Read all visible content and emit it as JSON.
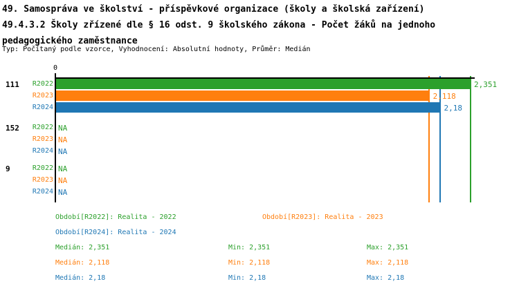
{
  "header": {
    "title_line1": "49. Samospráva ve školství - příspěvkové organizace (školy a školská zařízení)",
    "title_line2": "49.4.3.2 Školy zřízené dle § 16 odst. 9 školského zákona - Počet žáků na jednoho",
    "title_line3": "pedagogického zaměstnance",
    "meta": "Typ: Počítaný podle vzorce, Vyhodnocení: Absolutní hodnoty, Průměr: Medián"
  },
  "colors": {
    "r2022": "#2ca02c",
    "r2023": "#ff7f0e",
    "r2024": "#1f77b4",
    "axis": "#000000"
  },
  "chart_data": {
    "type": "bar",
    "orientation": "horizontal",
    "title": "49.4.3.2 Školy zřízené dle § 16 odst. 9 školského zákona - Počet žáků na jednoho pedagogického zaměstnance",
    "xlabel": "",
    "ylabel": "",
    "xlim": [
      0,
      2.38
    ],
    "axis_zero_label": "0",
    "grid": false,
    "legend_position": "bottom",
    "series_names": [
      "R2022",
      "R2023",
      "R2024"
    ],
    "categories": [
      "111",
      "152",
      "9"
    ],
    "groups": [
      {
        "label": "111",
        "rows": [
          {
            "series": "R2022",
            "value": 2.351,
            "value_label": "2,351"
          },
          {
            "series": "R2023",
            "value": 2.118,
            "value_label": "2,118"
          },
          {
            "series": "R2024",
            "value": 2.18,
            "value_label": "2,18"
          }
        ]
      },
      {
        "label": "152",
        "rows": [
          {
            "series": "R2022",
            "value": null,
            "value_label": "NA"
          },
          {
            "series": "R2023",
            "value": null,
            "value_label": "NA"
          },
          {
            "series": "R2024",
            "value": null,
            "value_label": "NA"
          }
        ]
      },
      {
        "label": "9",
        "rows": [
          {
            "series": "R2022",
            "value": null,
            "value_label": "NA"
          },
          {
            "series": "R2023",
            "value": null,
            "value_label": "NA"
          },
          {
            "series": "R2024",
            "value": null,
            "value_label": "NA"
          }
        ]
      }
    ],
    "median_marker_lines": [
      {
        "series": "R2022",
        "value": 2.351
      },
      {
        "series": "R2023",
        "value": 2.118
      },
      {
        "series": "R2024",
        "value": 2.18
      }
    ]
  },
  "footer": {
    "legend": [
      {
        "series": "R2022",
        "text": "Období[R2022]: Realita - 2022"
      },
      {
        "series": "R2023",
        "text": "Období[R2023]: Realita - 2023"
      },
      {
        "series": "R2024",
        "text": "Období[R2024]: Realita - 2024"
      }
    ],
    "stats": [
      {
        "series": "R2022",
        "median": "Medián: 2,351",
        "min": "Min: 2,351",
        "max": "Max: 2,351"
      },
      {
        "series": "R2023",
        "median": "Medián: 2,118",
        "min": "Min: 2,118",
        "max": "Max: 2,118"
      },
      {
        "series": "R2024",
        "median": "Medián: 2,18",
        "min": "Min: 2,18",
        "max": "Max: 2,18"
      }
    ]
  }
}
